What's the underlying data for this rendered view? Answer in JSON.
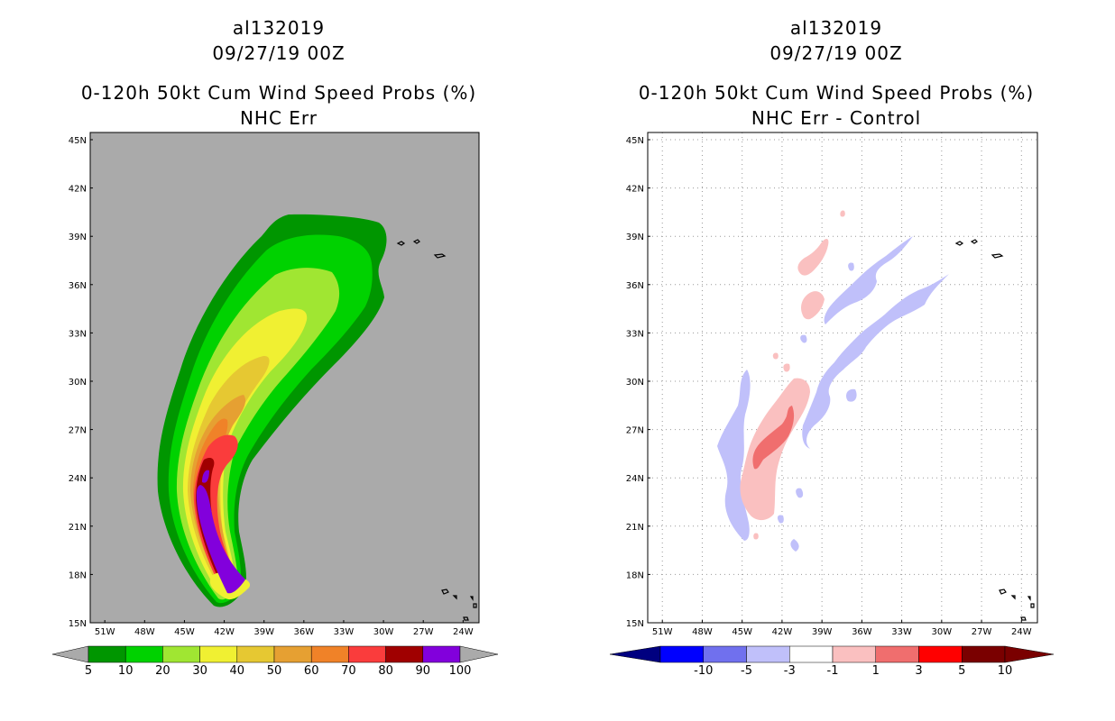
{
  "left_panel": {
    "title": [
      "al132019",
      "09/27/19 00Z",
      "0-120h 50kt Cum Wind Speed Probs (%)",
      "NHC Err"
    ],
    "background_color": "#aaaaaa"
  },
  "right_panel": {
    "title": [
      "al132019",
      "09/27/19 00Z",
      "0-120h 50kt Cum Wind Speed Probs (%)",
      "NHC Err - Control"
    ],
    "background_color": "#ffffff"
  },
  "axes": {
    "lat_labels": [
      "15N",
      "18N",
      "21N",
      "24N",
      "27N",
      "30N",
      "33N",
      "36N",
      "39N",
      "42N",
      "45N"
    ],
    "lon_labels": [
      "51W",
      "48W",
      "45W",
      "42W",
      "39W",
      "36W",
      "33W",
      "30W",
      "27W",
      "24W"
    ]
  },
  "left_colorbar": {
    "colors": [
      "#009600",
      "#00d200",
      "#a0e632",
      "#f0f032",
      "#e6c832",
      "#e6a032",
      "#f08228",
      "#fa3c3c",
      "#a00000",
      "#8200dc"
    ],
    "labels": [
      "5",
      "10",
      "20",
      "30",
      "40",
      "50",
      "60",
      "70",
      "80",
      "90",
      "100"
    ],
    "under_color": "#aaaaaa",
    "over_color": "#aaaaaa"
  },
  "right_colorbar": {
    "colors": [
      "#0000ff",
      "#7070ee",
      "#c0c0fa",
      "#ffffff",
      "#fac0c0",
      "#f06e6e",
      "#ff0000",
      "#7a0000"
    ],
    "labels": [
      "-10",
      "-5",
      "-3",
      "-1",
      "1",
      "3",
      "5",
      "10"
    ],
    "under_color": "#000080",
    "over_color": "#7a0000"
  }
}
